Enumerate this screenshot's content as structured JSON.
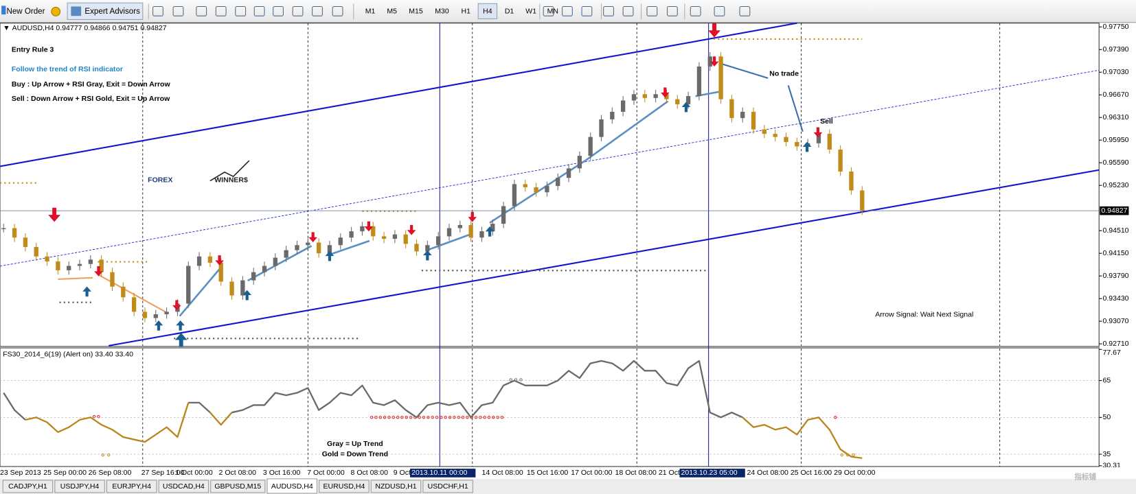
{
  "toolbar": {
    "new_order": "New Order",
    "expert_advisors": "Expert Advisors",
    "timeframes": [
      "M1",
      "M5",
      "M15",
      "M30",
      "H1",
      "H4",
      "D1",
      "W1",
      "MN"
    ]
  },
  "chart_header": {
    "symbol": "AUDUSD,H4",
    "quote": [
      "0.94777",
      "0.94866",
      "0.94751",
      "0.94827"
    ]
  },
  "annotations": {
    "title": "Entry Rule 3",
    "subtitle": "Follow the trend of RSI indicator",
    "buy_rule": "Buy : Up Arrow + RSI Gray, Exit = Down Arrow",
    "sell_rule": "Sell : Down Arrow + RSI Gold, Exit = Up Arrow",
    "logo_forex": "FOREX",
    "logo_winners": "WINNER$",
    "no_trade": "No trade",
    "sell": "Sell",
    "arrow_signal": "Arrow Signal: Wait Next Signal",
    "gray_legend": "Gray = Up Trend",
    "gold_legend": "Gold = Down Trend"
  },
  "chart_data": [
    {
      "type": "candlestick",
      "closes": [
        0.9455,
        0.944,
        0.9425,
        0.941,
        0.9402,
        0.9388,
        0.9395,
        0.9398,
        0.9405,
        0.9385,
        0.9362,
        0.9345,
        0.9322,
        0.9312,
        0.9318,
        0.9322,
        0.9335,
        0.9395,
        0.941,
        0.94,
        0.937,
        0.9348,
        0.9372,
        0.9385,
        0.9395,
        0.9408,
        0.942,
        0.9428,
        0.9432,
        0.9415,
        0.9428,
        0.944,
        0.945,
        0.9458,
        0.9442,
        0.9438,
        0.9445,
        0.943,
        0.9418,
        0.9428,
        0.9442,
        0.9455,
        0.946,
        0.944,
        0.945,
        0.9462,
        0.949,
        0.9525,
        0.952,
        0.9512,
        0.9522,
        0.9535,
        0.955,
        0.957,
        0.96,
        0.9628,
        0.964,
        0.9658,
        0.9668,
        0.9662,
        0.9668,
        0.966,
        0.9652,
        0.9665,
        0.9712,
        0.9728,
        0.966,
        0.963,
        0.964,
        0.9612,
        0.9605,
        0.96,
        0.9592,
        0.9585,
        0.959,
        0.9605,
        0.958,
        0.9545,
        0.9515,
        0.9483
      ],
      "up_color": "#6a6a6a",
      "down_color": "#c08b1a",
      "ylim": [
        0.9268,
        0.9781
      ],
      "yticks": [
        {
          "value": 0.9775,
          "label": "0.97750"
        },
        {
          "value": 0.9739,
          "label": "0.97390"
        },
        {
          "value": 0.9703,
          "label": "0.97030"
        },
        {
          "value": 0.9667,
          "label": "0.96670"
        },
        {
          "value": 0.9631,
          "label": "0.96310"
        },
        {
          "value": 0.9595,
          "label": "0.95950"
        },
        {
          "value": 0.9559,
          "label": "0.95590"
        },
        {
          "value": 0.9523,
          "label": "0.95230"
        },
        {
          "value": 0.9451,
          "label": "0.94510"
        },
        {
          "value": 0.9415,
          "label": "0.94150"
        },
        {
          "value": 0.9379,
          "label": "0.93790"
        },
        {
          "value": 0.9343,
          "label": "0.93430"
        },
        {
          "value": 0.9307,
          "label": "0.93070"
        },
        {
          "value": 0.9271,
          "label": "0.92710"
        }
      ],
      "current_price": {
        "value": 0.94827,
        "label": "0.94827"
      }
    },
    {
      "type": "line",
      "title": "FS30_2014_6(19) (Alert on) 33.40 33.40",
      "values": [
        60,
        53,
        49,
        50,
        48,
        44,
        46,
        49,
        50,
        47,
        45,
        42,
        41,
        40,
        43,
        46,
        42,
        56,
        56,
        52,
        47,
        52,
        53,
        55,
        55,
        60,
        59,
        60,
        62,
        53,
        56,
        60,
        59,
        63,
        56,
        55,
        57,
        53,
        50,
        55,
        56,
        55,
        56,
        50,
        55,
        56,
        63,
        65,
        63,
        63,
        63,
        65,
        69,
        66,
        72,
        73,
        72,
        69,
        73,
        69,
        69,
        64,
        63,
        70,
        73,
        52,
        50,
        52,
        50,
        46,
        47,
        45,
        46,
        43,
        49,
        50,
        45,
        37,
        34,
        33.4
      ],
      "color": "#6a6a6a",
      "down_color": "#b8861b",
      "ylim": [
        30,
        78
      ],
      "yticks": [
        77.67,
        65,
        50,
        35,
        30.31
      ],
      "levels": [
        65,
        50,
        35
      ]
    }
  ],
  "time_axis": {
    "labels": [
      "23 Sep 2013",
      "25 Sep 00:00",
      "26 Sep 08:00",
      "27 Sep 16:00",
      "1 Oct 00:00",
      "2 Oct 08:00",
      "3 Oct 16:00",
      "7 Oct 00:00",
      "8 Oct 08:00",
      "9 Oct",
      "2013.10.11 00:00",
      "14 Oct 08:00",
      "15 Oct 16:00",
      "17 Oct 00:00",
      "18 Oct 08:00",
      "21 Oct",
      "2013.10.23 05:00",
      "24 Oct 08:00",
      "25 Oct 16:00",
      "29 Oct 00:00"
    ]
  },
  "tabs": [
    "CADJPY,H1",
    "USDJPY,H4",
    "EURJPY,H4",
    "USDCAD,H4",
    "GBPUSD,M15",
    "AUDUSD,H4",
    "EURUSD,H4",
    "NZDUSD,H1",
    "USDCHF,H1"
  ],
  "watermark": "指标铺"
}
